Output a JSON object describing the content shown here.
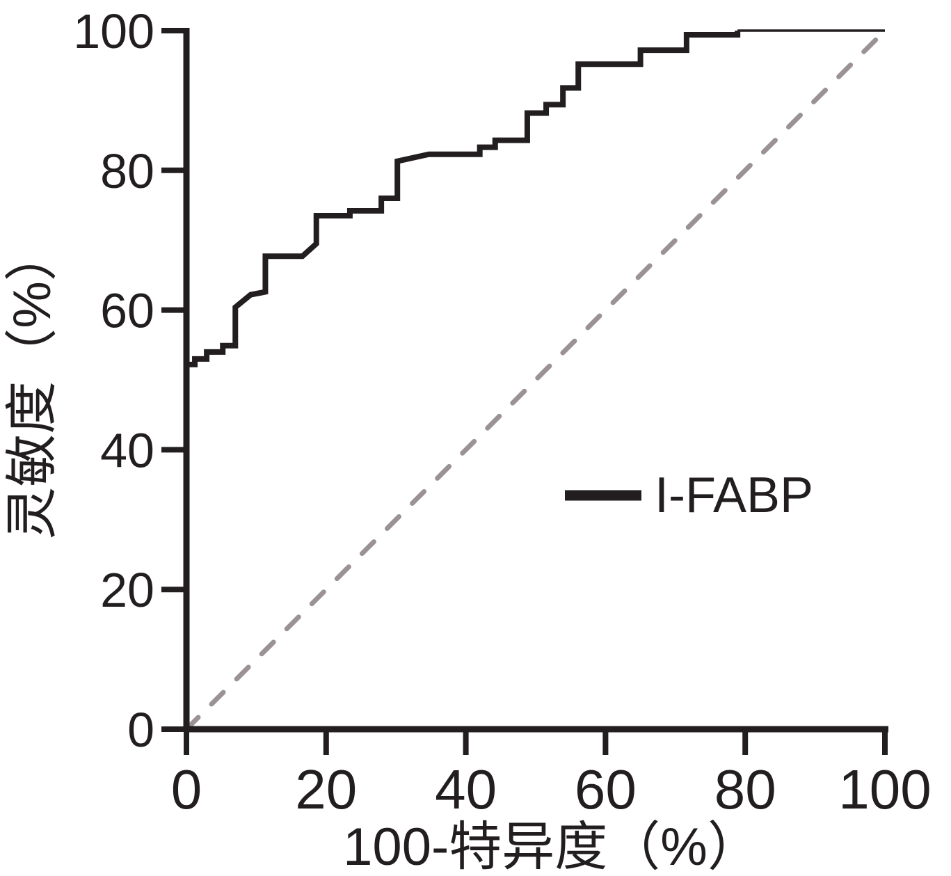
{
  "chart_data": {
    "type": "line",
    "subtype": "roc-step-curve",
    "title": "",
    "xlabel": "100-特异度（%）",
    "ylabel": "灵敏度（%）",
    "xlim": [
      0,
      100
    ],
    "ylim": [
      0,
      100
    ],
    "xticks": [
      0,
      20,
      40,
      60,
      80,
      100
    ],
    "yticks": [
      0,
      20,
      40,
      60,
      80,
      100
    ],
    "grid": false,
    "legend": {
      "position": "center-right",
      "entries": [
        {
          "label": "I-FABP",
          "swatch": "thick-solid-line",
          "color": "#221e1f"
        }
      ]
    },
    "reference_line": {
      "name": "chance-diagonal",
      "from": [
        0,
        0
      ],
      "to": [
        100,
        100
      ],
      "style": "dashed",
      "color": "#9a9295"
    },
    "series": [
      {
        "name": "I-FABP",
        "color": "#221e1f",
        "style": "step",
        "points": [
          [
            0,
            52.2
          ],
          [
            1.2,
            52.2
          ],
          [
            1.2,
            53.0
          ],
          [
            2.9,
            53.0
          ],
          [
            2.9,
            54.0
          ],
          [
            5.2,
            54.0
          ],
          [
            5.2,
            54.9
          ],
          [
            7.0,
            54.9
          ],
          [
            7.0,
            60.4
          ],
          [
            9.2,
            62.2
          ],
          [
            11.3,
            62.6
          ],
          [
            11.3,
            67.7
          ],
          [
            16.6,
            67.7
          ],
          [
            18.6,
            69.5
          ],
          [
            18.6,
            73.5
          ],
          [
            23.4,
            73.5
          ],
          [
            23.4,
            74.2
          ],
          [
            27.9,
            74.2
          ],
          [
            27.9,
            76.0
          ],
          [
            30.2,
            76.0
          ],
          [
            30.2,
            81.3
          ],
          [
            34.7,
            82.3
          ],
          [
            42.0,
            82.3
          ],
          [
            42.0,
            83.3
          ],
          [
            44.2,
            83.3
          ],
          [
            44.2,
            84.3
          ],
          [
            48.8,
            84.3
          ],
          [
            48.8,
            88.2
          ],
          [
            51.5,
            88.2
          ],
          [
            51.5,
            89.4
          ],
          [
            53.9,
            89.4
          ],
          [
            53.9,
            91.8
          ],
          [
            56.1,
            91.8
          ],
          [
            56.1,
            95.2
          ],
          [
            65.0,
            95.2
          ],
          [
            65.0,
            97.2
          ],
          [
            71.6,
            97.2
          ],
          [
            71.6,
            99.4
          ],
          [
            78.9,
            99.4
          ],
          [
            78.9,
            100
          ]
        ],
        "thin_tail_from": [
          78.9,
          100
        ],
        "thin_tail_to": [
          100,
          100
        ]
      }
    ]
  },
  "colors": {
    "curve": "#221e1f",
    "reference": "#9a9295",
    "axis": "#221e1f",
    "text": "#221e1f",
    "background": "#ffffff"
  }
}
